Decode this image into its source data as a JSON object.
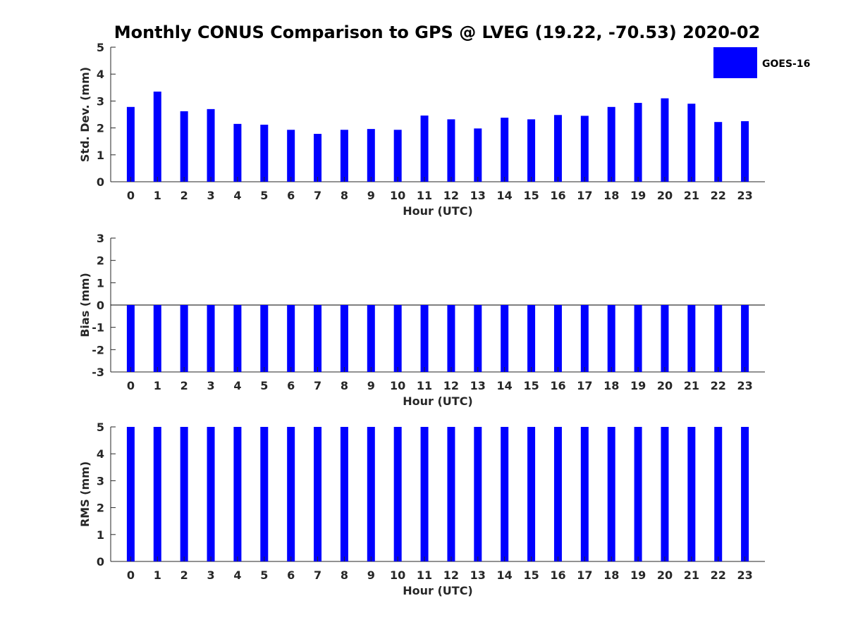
{
  "figure": {
    "title": "Monthly CONUS Comparison to GPS @ LVEG (19.22, -70.53) 2020-02",
    "legend": {
      "label": "GOES-16",
      "color": "#0000ff",
      "placement": "top-right"
    },
    "bar_color": "#0000ff"
  },
  "chart_data": [
    {
      "type": "bar",
      "series_name": "GOES-16",
      "categories": [
        "0",
        "1",
        "2",
        "3",
        "4",
        "5",
        "6",
        "7",
        "8",
        "9",
        "10",
        "11",
        "12",
        "13",
        "14",
        "15",
        "16",
        "17",
        "18",
        "19",
        "20",
        "21",
        "22",
        "23"
      ],
      "values": [
        2.78,
        3.35,
        2.62,
        2.7,
        2.15,
        2.12,
        1.93,
        1.78,
        1.93,
        1.96,
        1.93,
        2.46,
        2.32,
        1.98,
        2.38,
        2.32,
        2.48,
        2.45,
        2.78,
        2.93,
        3.1,
        2.9,
        2.22,
        2.25
      ],
      "xlabel": "Hour (UTC)",
      "ylabel": "Std. Dev. (mm)",
      "ylim": [
        0,
        5
      ],
      "yticks": [
        "0",
        "1",
        "2",
        "3",
        "4",
        "5"
      ],
      "grid": false
    },
    {
      "type": "bar",
      "series_name": "GOES-16",
      "categories": [
        "0",
        "1",
        "2",
        "3",
        "4",
        "5",
        "6",
        "7",
        "8",
        "9",
        "10",
        "11",
        "12",
        "13",
        "14",
        "15",
        "16",
        "17",
        "18",
        "19",
        "20",
        "21",
        "22",
        "23"
      ],
      "values": [
        -3,
        -3,
        -3,
        -3,
        -3,
        -3,
        -3,
        -3,
        -3,
        -3,
        -3,
        -3,
        -3,
        -3,
        -3,
        -3,
        -3,
        -3,
        -3,
        -3,
        -3,
        -3,
        -3,
        -3
      ],
      "xlabel": "Hour (UTC)",
      "ylabel": "Bias (mm)",
      "ylim": [
        -3,
        3
      ],
      "yticks": [
        "-3",
        "-2",
        "-1",
        "0",
        "1",
        "2",
        "3"
      ],
      "grid": false
    },
    {
      "type": "bar",
      "series_name": "GOES-16",
      "categories": [
        "0",
        "1",
        "2",
        "3",
        "4",
        "5",
        "6",
        "7",
        "8",
        "9",
        "10",
        "11",
        "12",
        "13",
        "14",
        "15",
        "16",
        "17",
        "18",
        "19",
        "20",
        "21",
        "22",
        "23"
      ],
      "values": [
        5,
        5,
        5,
        5,
        5,
        5,
        5,
        5,
        5,
        5,
        5,
        5,
        5,
        5,
        5,
        5,
        5,
        5,
        5,
        5,
        5,
        5,
        5,
        5
      ],
      "xlabel": "Hour (UTC)",
      "ylabel": "RMS (mm)",
      "ylim": [
        0,
        5
      ],
      "yticks": [
        "0",
        "1",
        "2",
        "3",
        "4",
        "5"
      ],
      "grid": false
    }
  ]
}
